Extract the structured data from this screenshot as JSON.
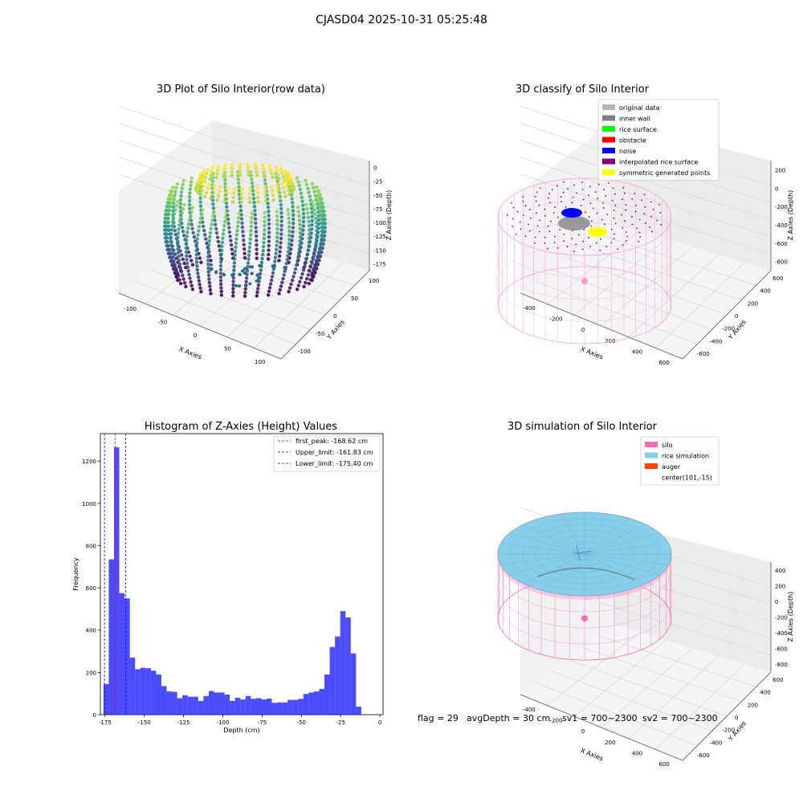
{
  "suptitle": "CJASD04 2025-10-31 05:25:48",
  "chart_data": [
    {
      "type": "scatter",
      "title": "3D Plot of Silo Interior(row data)",
      "xlabel": "X Axies",
      "ylabel": "Y Axies",
      "zlabel": "Z Axies (Depth)",
      "x_ticks": [
        -100,
        -50,
        0,
        50,
        100
      ],
      "y_ticks": [
        -100,
        -50,
        0,
        50,
        100
      ],
      "z_ticks": [
        0,
        -25,
        -50,
        -75,
        -100,
        -125,
        -150,
        -175
      ],
      "colormap": "viridis"
    },
    {
      "type": "scatter",
      "title": "3D classify of Silo Interior",
      "xlabel": "X Axies",
      "ylabel": "Y Axies",
      "zlabel": "Z Axies (Depth)",
      "x_ticks": [
        -400,
        -200,
        0,
        200,
        400,
        600
      ],
      "y_ticks": [
        -600,
        -400,
        -200,
        0,
        200,
        400,
        600
      ],
      "z_ticks": [
        200,
        0,
        -200,
        -400,
        -600,
        -800
      ],
      "legend": [
        {
          "label": "original data",
          "color": "#b4b4b4"
        },
        {
          "label": "inner wall",
          "color": "#808080"
        },
        {
          "label": "rice surface",
          "color": "#00ff00"
        },
        {
          "label": "obstacle",
          "color": "#ff0000"
        },
        {
          "label": "noise",
          "color": "#0000ff"
        },
        {
          "label": "interpolated rice surface",
          "color": "#800080"
        },
        {
          "label": "symmetric generated points",
          "color": "#ffff00"
        }
      ],
      "legend_loc": "top-right"
    },
    {
      "type": "bar",
      "title": "Histogram of Z-Axies (Height) Values",
      "xlabel": "Depth (cm)",
      "ylabel": "Frequency",
      "xlim": [
        -178,
        2
      ],
      "ylim": [
        0,
        1330
      ],
      "x_ticks": [
        -175,
        -150,
        -125,
        -100,
        -75,
        -50,
        -25,
        0
      ],
      "y_ticks": [
        0,
        200,
        400,
        600,
        800,
        1000,
        1200
      ],
      "bin_start": -176,
      "bin_width": 3.35,
      "values": [
        145,
        735,
        1265,
        575,
        550,
        270,
        215,
        222,
        220,
        208,
        190,
        135,
        110,
        108,
        78,
        92,
        85,
        85,
        65,
        88,
        112,
        105,
        105,
        95,
        65,
        80,
        72,
        88,
        75,
        78,
        72,
        76,
        56,
        58,
        58,
        70,
        70,
        75,
        98,
        105,
        110,
        122,
        190,
        320,
        370,
        490,
        460,
        290,
        38
      ],
      "bar_color": "#0000ff",
      "vlines": [
        {
          "label": "first_peak: -168.62 cm",
          "x": -168.62,
          "color": "#ff0000"
        },
        {
          "label": "Upper_limit: -161.83 cm",
          "x": -161.83,
          "color": "#0000ff"
        },
        {
          "label": "Lower_limit: -175.40 cm",
          "x": -175.4,
          "color": "#0000ff"
        }
      ],
      "legend_loc": "top-right"
    },
    {
      "type": "scatter",
      "title": "3D simulation of Silo Interior",
      "xlabel": "X Axies",
      "ylabel": "Y Axies",
      "zlabel": "Z Axies (Depth)",
      "x_ticks": [
        -400,
        -200,
        0,
        200,
        400,
        600
      ],
      "y_ticks": [
        -600,
        -400,
        -200,
        0,
        200,
        400,
        600
      ],
      "z_ticks": [
        400,
        200,
        0,
        -200,
        -400,
        -600,
        -800
      ],
      "legend": [
        {
          "label": "silo",
          "color": "#ff69b4"
        },
        {
          "label": "rice simulation",
          "color": "#87ceeb"
        },
        {
          "label": "auger",
          "color": "#ff4500"
        },
        {
          "label": "center(101,-15)",
          "color": ""
        }
      ],
      "legend_loc": "top-right"
    }
  ],
  "info": {
    "flag": "flag = 29",
    "avg": "avgDepth = 30 cm",
    "sv1": "sv1 = 700~2300",
    "sv2": "sv2 = 700~2300"
  }
}
